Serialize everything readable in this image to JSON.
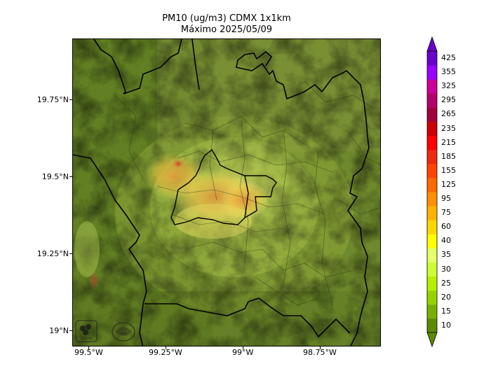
{
  "title": "PM10 (ug/m3) CDMX 1x1km",
  "subtitle": "Máximo 2025/05/09",
  "map": {
    "lon_ticks": [
      "99.5°W",
      "99.25°W",
      "99°W",
      "98.75°W"
    ],
    "lat_ticks": [
      "19.75°N",
      "19.5°N",
      "19.25°N",
      "19°N"
    ],
    "lon_range": [
      -99.55,
      -98.55
    ],
    "lat_range": [
      18.95,
      19.95
    ]
  },
  "colorbar": {
    "labels": [
      "10",
      "15",
      "20",
      "25",
      "30",
      "35",
      "40",
      "60",
      "75",
      "95",
      "125",
      "155",
      "185",
      "215",
      "235",
      "265",
      "295",
      "325",
      "355",
      "425"
    ],
    "colors": [
      "#5c8a00",
      "#78b000",
      "#96d400",
      "#b4f000",
      "#ccff33",
      "#e6ff66",
      "#ffff00",
      "#ffd700",
      "#ffb300",
      "#ff9000",
      "#ff6a00",
      "#ff4500",
      "#ee2a10",
      "#ff0000",
      "#cc0000",
      "#a0003c",
      "#b4006e",
      "#cc0099",
      "#9900ff",
      "#6a00cc"
    ]
  },
  "logos": [
    "SEDEMA",
    "Aire"
  ]
}
